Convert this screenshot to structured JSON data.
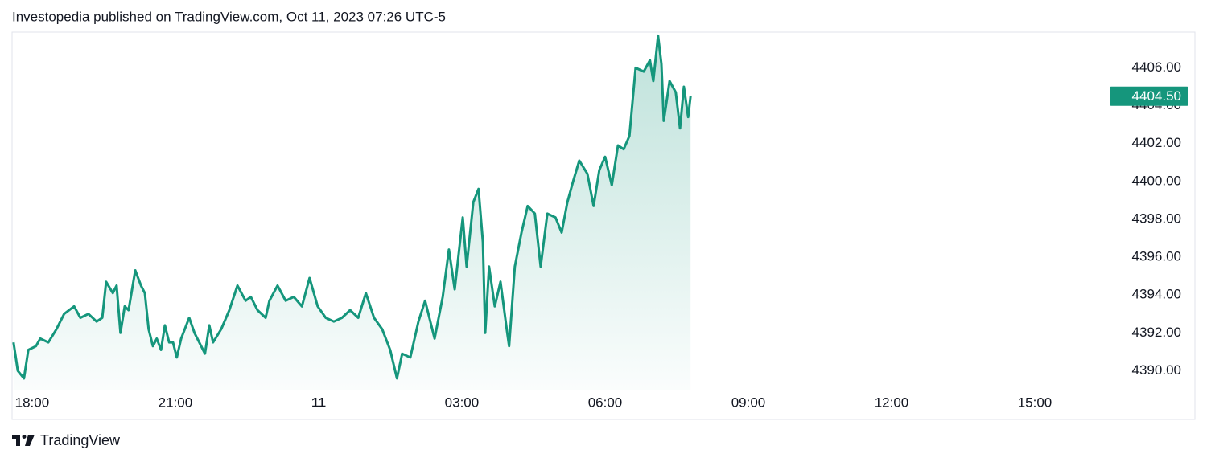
{
  "header": "Investopedia published on TradingView.com, Oct 11, 2023 07:26 UTC-5",
  "footer": "TradingView",
  "chart_data": {
    "type": "area",
    "color": "#15967c",
    "x": [
      -0.39,
      -0.3,
      -0.17,
      -0.08,
      0.08,
      0.17,
      0.34,
      0.51,
      0.67,
      0.88,
      1.01,
      1.18,
      1.35,
      1.47,
      1.55,
      1.69,
      1.77,
      1.85,
      1.94,
      2.02,
      2.16,
      2.28,
      2.36,
      2.44,
      2.53,
      2.61,
      2.7,
      2.78,
      2.87,
      2.95,
      3.03,
      3.12,
      3.29,
      3.4,
      3.54,
      3.62,
      3.71,
      3.79,
      3.96,
      4.13,
      4.3,
      4.47,
      4.58,
      4.72,
      4.89,
      4.97,
      5.14,
      5.31,
      5.48,
      5.65,
      5.81,
      5.98,
      6.15,
      6.32,
      6.49,
      6.66,
      6.83,
      6.99,
      7.16,
      7.33,
      7.5,
      7.64,
      7.75,
      7.92,
      8.09,
      8.23,
      8.43,
      8.6,
      8.73,
      8.85,
      9.02,
      9.1,
      9.24,
      9.35,
      9.44,
      9.49,
      9.57,
      9.69,
      9.81,
      9.94,
      9.99,
      10.11,
      10.25,
      10.38,
      10.53,
      10.65,
      10.79,
      10.96,
      11.09,
      11.21,
      11.33,
      11.46,
      11.63,
      11.76,
      11.88,
      12.0,
      12.14,
      12.27,
      12.39,
      12.51,
      12.64,
      12.81,
      12.94,
      13.01,
      13.11,
      13.18,
      13.23,
      13.35,
      13.48,
      13.57,
      13.65,
      13.74,
      13.79
    ],
    "values": [
      4391.5,
      4390.0,
      4389.6,
      4391.1,
      4391.3,
      4391.7,
      4391.5,
      4392.2,
      4393.0,
      4393.4,
      4392.8,
      4393.0,
      4392.6,
      4392.8,
      4394.7,
      4394.1,
      4394.5,
      4392.0,
      4393.4,
      4393.2,
      4395.3,
      4394.5,
      4394.1,
      4392.2,
      4391.3,
      4391.7,
      4391.1,
      4392.4,
      4391.5,
      4391.5,
      4390.7,
      4391.7,
      4392.8,
      4392.0,
      4391.3,
      4390.9,
      4392.4,
      4391.5,
      4392.2,
      4393.2,
      4394.5,
      4393.7,
      4393.9,
      4393.2,
      4392.8,
      4393.7,
      4394.5,
      4393.7,
      4393.9,
      4393.4,
      4394.9,
      4393.4,
      4392.8,
      4392.6,
      4392.8,
      4393.2,
      4392.8,
      4394.1,
      4392.8,
      4392.2,
      4391.1,
      4389.6,
      4390.9,
      4390.7,
      4392.6,
      4393.7,
      4391.7,
      4393.9,
      4396.4,
      4394.3,
      4398.1,
      4395.5,
      4398.9,
      4399.6,
      4396.8,
      4392.0,
      4395.5,
      4393.4,
      4394.7,
      4392.2,
      4391.3,
      4395.5,
      4397.3,
      4398.7,
      4398.3,
      4395.5,
      4398.3,
      4398.1,
      4397.3,
      4398.9,
      4400.0,
      4401.1,
      4400.4,
      4398.7,
      4400.6,
      4401.3,
      4399.8,
      4401.9,
      4401.7,
      4402.4,
      4406.0,
      4405.8,
      4406.4,
      4405.3,
      4407.7,
      4406.2,
      4403.2,
      4405.3,
      4404.7,
      4402.8,
      4405.0,
      4403.4,
      4404.5
    ],
    "xlim": [
      -0.42,
      22.5
    ],
    "ylim": [
      4389,
      4407.8
    ],
    "xticks": [
      {
        "value": 0,
        "label": "18:00"
      },
      {
        "value": 3,
        "label": "21:00"
      },
      {
        "value": 6,
        "label": "11"
      },
      {
        "value": 9,
        "label": "03:00"
      },
      {
        "value": 12,
        "label": "06:00"
      },
      {
        "value": 15,
        "label": "09:00"
      },
      {
        "value": 18,
        "label": "12:00"
      },
      {
        "value": 21,
        "label": "15:00"
      }
    ],
    "yticks": [
      {
        "value": 4390,
        "label": "4390.00"
      },
      {
        "value": 4392,
        "label": "4392.00"
      },
      {
        "value": 4394,
        "label": "4394.00"
      },
      {
        "value": 4396,
        "label": "4396.00"
      },
      {
        "value": 4398,
        "label": "4398.00"
      },
      {
        "value": 4400,
        "label": "4400.00"
      },
      {
        "value": 4402,
        "label": "4402.00"
      },
      {
        "value": 4404,
        "label": "4404.00"
      },
      {
        "value": 4406,
        "label": "4406.00"
      }
    ],
    "price_label": {
      "value": 4404.5,
      "label": "4404.50"
    }
  }
}
